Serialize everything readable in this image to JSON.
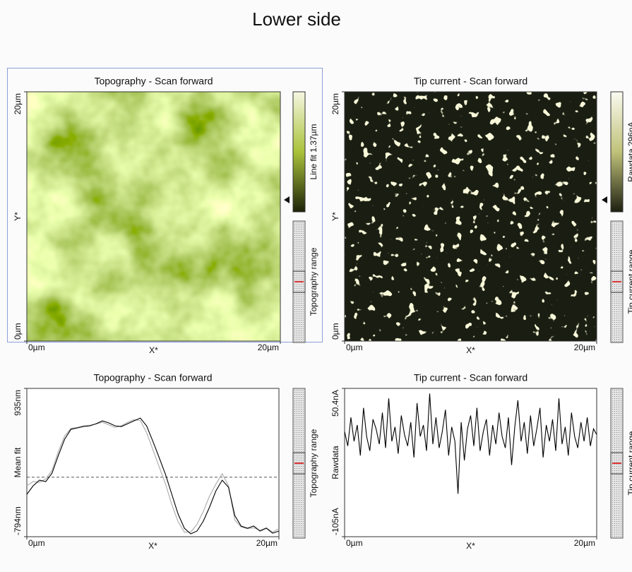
{
  "title": "Lower side",
  "panels": [
    {
      "title": "Topography - Scan forward",
      "x_label": "X*",
      "y_label": "Y*",
      "xticks": [
        {
          "value": 0,
          "label": "0µm"
        },
        {
          "value": 20,
          "label": "20µm"
        }
      ],
      "yticks": [
        {
          "value": 0,
          "label": "0µm"
        },
        {
          "value": 20,
          "label": "20µm"
        }
      ],
      "colorbar_label": "Line fit 1.37µm",
      "range_label": "Topography range"
    },
    {
      "title": "Tip current - Scan forward",
      "x_label": "X*",
      "y_label": "Y*",
      "xticks": [
        {
          "value": 0,
          "label": "0µm"
        },
        {
          "value": 20,
          "label": "20µm"
        }
      ],
      "yticks": [
        {
          "value": 0,
          "label": "0µm"
        },
        {
          "value": 20,
          "label": "20µm"
        }
      ],
      "colorbar_label": "Rawdata 296nA",
      "range_label": "Tip current range"
    }
  ],
  "charts": [
    {
      "type": "line",
      "title": "Topography - Scan forward",
      "x_label": "X*",
      "y_label": "Mean fit",
      "xlim": [
        0,
        20
      ],
      "ylim": [
        -794,
        935
      ],
      "xticks": [
        {
          "value": 0,
          "label": "0µm"
        },
        {
          "value": 20,
          "label": "20µm"
        }
      ],
      "yticks": [
        {
          "value": -794,
          "label": "-794nm"
        },
        {
          "value": 935,
          "label": "935nm"
        }
      ],
      "reference_line": -100,
      "range_label": "Topography range",
      "x": [
        0,
        0.5,
        1,
        1.5,
        2,
        2.5,
        3,
        3.5,
        4,
        4.5,
        5,
        5.5,
        6,
        6.5,
        7,
        7.5,
        8,
        8.5,
        9,
        9.5,
        10,
        10.5,
        11,
        11.5,
        12,
        12.5,
        13,
        13.5,
        14,
        14.5,
        15,
        15.5,
        16,
        16.5,
        17,
        17.5,
        18,
        18.5,
        19,
        19.5,
        20
      ],
      "series": [
        {
          "color": "#aaaaaa",
          "values": [
            -200,
            -150,
            -160,
            -120,
            -20,
            200,
            380,
            470,
            480,
            500,
            505,
            520,
            540,
            510,
            480,
            500,
            540,
            570,
            560,
            420,
            220,
            20,
            -180,
            -420,
            -620,
            -740,
            -740,
            -650,
            -500,
            -320,
            -180,
            -60,
            -200,
            -600,
            -680,
            -700,
            -690,
            -720,
            -690,
            -740,
            -700
          ]
        },
        {
          "color": "#000000",
          "values": [
            -300,
            -201,
            -135,
            -152,
            -53,
            153,
            342,
            458,
            474,
            490,
            499,
            523,
            556,
            532,
            499,
            490,
            523,
            556,
            589,
            499,
            318,
            128,
            -69,
            -300,
            -530,
            -695,
            -761,
            -728,
            -613,
            -448,
            -259,
            -135,
            -218,
            -547,
            -670,
            -695,
            -670,
            -728,
            -695,
            -753,
            -728
          ]
        }
      ]
    },
    {
      "type": "line",
      "title": "Tip current - Scan forward",
      "x_label": "X*",
      "y_label": "Rawdata",
      "xlim": [
        0,
        20
      ],
      "ylim": [
        -105,
        50.4
      ],
      "xticks": [
        {
          "value": 0,
          "label": "0µm"
        },
        {
          "value": 20,
          "label": "20µm"
        }
      ],
      "yticks": [
        {
          "value": -105,
          "label": "-105nA"
        },
        {
          "value": 50.4,
          "label": "50.4nA"
        }
      ],
      "range_label": "Tip current range",
      "x": [
        0,
        0.25,
        0.5,
        0.75,
        1,
        1.25,
        1.5,
        1.75,
        2,
        2.25,
        2.5,
        2.75,
        3,
        3.25,
        3.5,
        3.75,
        4,
        4.25,
        4.5,
        4.75,
        5,
        5.25,
        5.5,
        5.75,
        6,
        6.25,
        6.5,
        6.75,
        7,
        7.25,
        7.5,
        7.75,
        8,
        8.25,
        8.5,
        8.75,
        9,
        9.25,
        9.5,
        9.75,
        10,
        10.25,
        10.5,
        10.75,
        11,
        11.25,
        11.5,
        11.75,
        12,
        12.25,
        12.5,
        12.75,
        13,
        13.25,
        13.5,
        13.75,
        14,
        14.25,
        14.5,
        14.75,
        15,
        15.25,
        15.5,
        15.75,
        16,
        16.25,
        16.5,
        16.75,
        17,
        17.25,
        17.5,
        17.75,
        18,
        18.25,
        18.5,
        18.75,
        19,
        19.25,
        19.5,
        19.75,
        20
      ],
      "series": [
        {
          "color": "#000000",
          "values": [
            5,
            -10,
            20,
            -5,
            12,
            -20,
            30,
            0,
            -15,
            18,
            8,
            -8,
            25,
            -12,
            40,
            -5,
            10,
            -18,
            22,
            2,
            -10,
            15,
            -22,
            35,
            0,
            12,
            -15,
            45,
            -8,
            20,
            -12,
            5,
            28,
            -20,
            10,
            -5,
            -60,
            15,
            -25,
            8,
            22,
            -10,
            30,
            -15,
            5,
            18,
            -20,
            12,
            -8,
            25,
            0,
            -12,
            20,
            -30,
            10,
            38,
            -5,
            15,
            -18,
            22,
            -10,
            8,
            30,
            -22,
            12,
            -5,
            18,
            -15,
            40,
            -8,
            10,
            -20,
            25,
            0,
            -12,
            15,
            -5,
            20,
            -10,
            8,
            2
          ]
        }
      ]
    }
  ]
}
